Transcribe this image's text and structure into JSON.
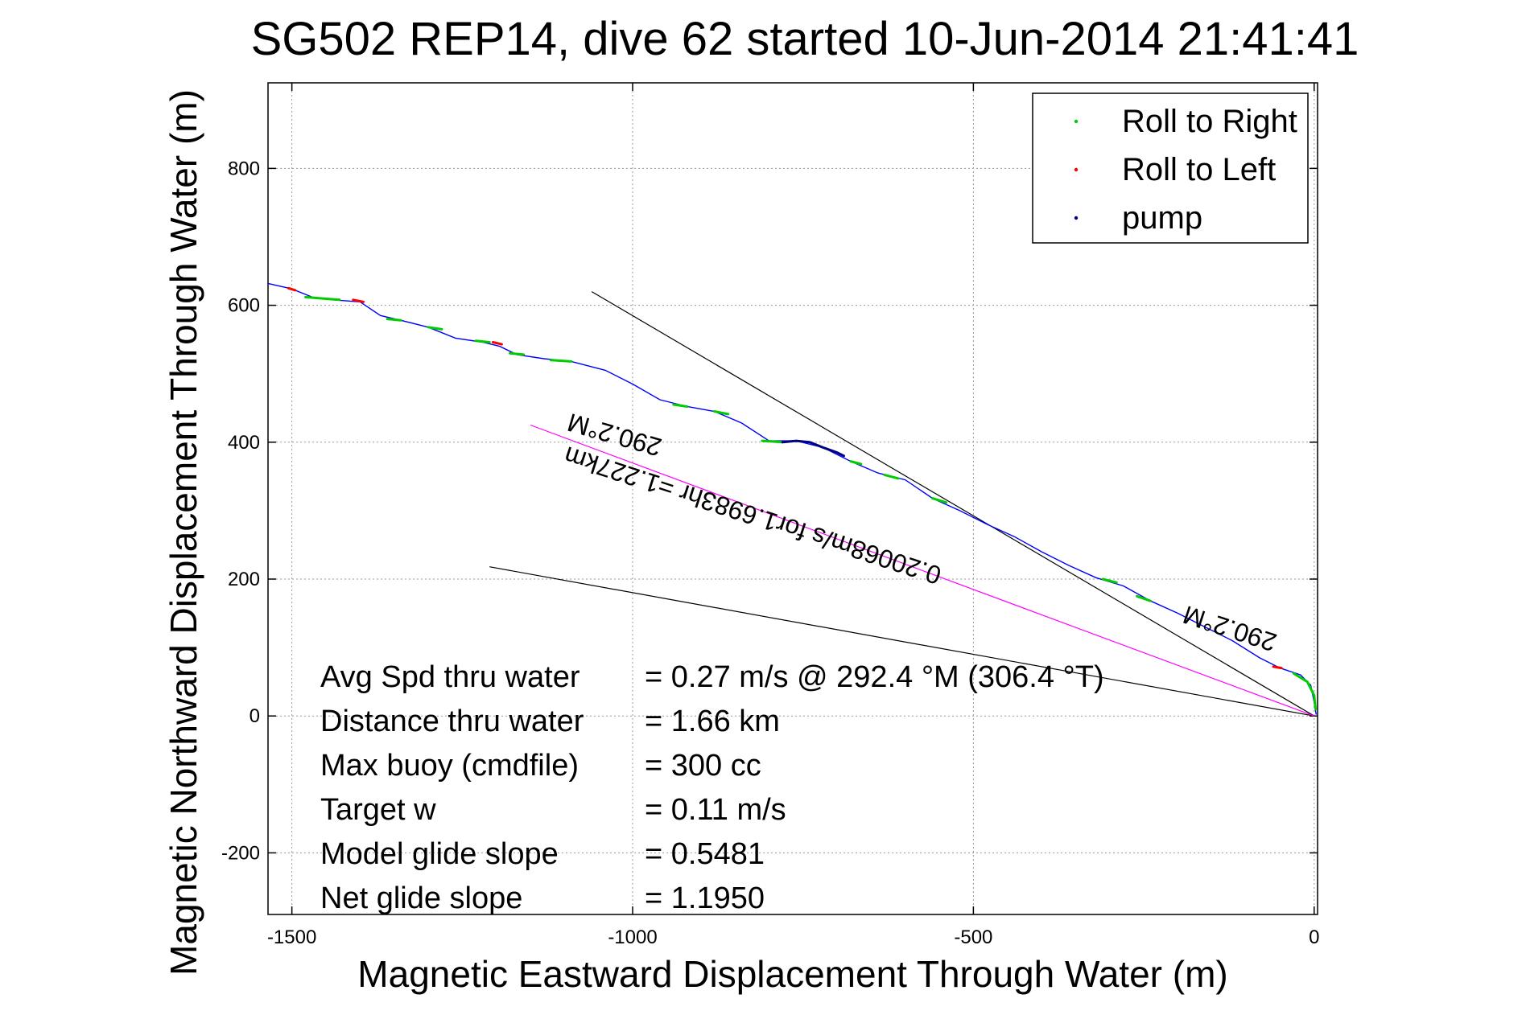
{
  "chart_data": {
    "type": "line",
    "title": "SG502 REP14, dive 62 started 10-Jun-2014 21:41:41",
    "xlabel": "Magnetic Eastward Displacement Through Water (m)",
    "ylabel": "Magnetic Northward Displacement Through Water (m)",
    "xlim": [
      -1535,
      5
    ],
    "ylim": [
      -290,
      925
    ],
    "xticks": [
      -1500,
      -1000,
      -500,
      0
    ],
    "yticks": [
      -200,
      0,
      200,
      400,
      600,
      800
    ],
    "grid": true,
    "legend_position": "top-right",
    "colors": {
      "track": "#0000ff",
      "roll_right": "#00cc00",
      "roll_left": "#ff0000",
      "pump": "#000080",
      "heading_line": "#ff00ff",
      "wedge": "#000000"
    },
    "series": [
      {
        "name": "Roll to Right",
        "segments": [
          [
            [
              -1480,
              612
            ],
            [
              -1455,
              610
            ],
            [
              -1430,
              608
            ]
          ],
          [
            [
              -1360,
              580
            ],
            [
              -1340,
              578
            ]
          ],
          [
            [
              -1300,
              568
            ],
            [
              -1280,
              565
            ]
          ],
          [
            [
              -1230,
              548
            ],
            [
              -1210,
              546
            ]
          ],
          [
            [
              -1180,
              530
            ],
            [
              -1160,
              528
            ]
          ],
          [
            [
              -1120,
              520
            ],
            [
              -1090,
              518
            ]
          ],
          [
            [
              -940,
              455
            ],
            [
              -920,
              452
            ]
          ],
          [
            [
              -880,
              445
            ],
            [
              -860,
              441
            ]
          ],
          [
            [
              -810,
              402
            ],
            [
              -780,
              400
            ]
          ],
          [
            [
              -680,
              372
            ],
            [
              -665,
              368
            ]
          ],
          [
            [
              -630,
              352
            ],
            [
              -610,
              347
            ]
          ],
          [
            [
              -560,
              318
            ],
            [
              -540,
              312
            ]
          ],
          [
            [
              -310,
              200
            ],
            [
              -290,
              195
            ]
          ],
          [
            [
              -260,
              175
            ],
            [
              -240,
              168
            ]
          ],
          [
            [
              -30,
              62
            ],
            [
              -10,
              50
            ],
            [
              0,
              30
            ],
            [
              2,
              10
            ]
          ]
        ]
      },
      {
        "name": "Roll to Left",
        "segments": [
          [
            [
              -1505,
              625
            ],
            [
              -1495,
              622
            ]
          ],
          [
            [
              -1410,
              608
            ],
            [
              -1395,
              605
            ]
          ],
          [
            [
              -1205,
              546
            ],
            [
              -1192,
              543
            ]
          ],
          [
            [
              -60,
              72
            ],
            [
              -48,
              70
            ]
          ]
        ]
      },
      {
        "name": "pump",
        "segments": [
          [
            [
              -780,
              400
            ],
            [
              -760,
              402
            ],
            [
              -740,
              400
            ],
            [
              -720,
              392
            ],
            [
              -700,
              385
            ],
            [
              -690,
              380
            ]
          ]
        ]
      },
      {
        "name": "track",
        "points": [
          [
            -1535,
            632
          ],
          [
            -1500,
            624
          ],
          [
            -1470,
            612
          ],
          [
            -1440,
            608
          ],
          [
            -1400,
            605
          ],
          [
            -1370,
            585
          ],
          [
            -1340,
            578
          ],
          [
            -1300,
            568
          ],
          [
            -1260,
            552
          ],
          [
            -1220,
            546
          ],
          [
            -1195,
            540
          ],
          [
            -1170,
            528
          ],
          [
            -1130,
            522
          ],
          [
            -1090,
            518
          ],
          [
            -1040,
            505
          ],
          [
            -1000,
            485
          ],
          [
            -960,
            462
          ],
          [
            -920,
            452
          ],
          [
            -880,
            445
          ],
          [
            -840,
            428
          ],
          [
            -800,
            402
          ],
          [
            -760,
            402
          ],
          [
            -720,
            392
          ],
          [
            -680,
            372
          ],
          [
            -640,
            355
          ],
          [
            -600,
            345
          ],
          [
            -560,
            318
          ],
          [
            -520,
            300
          ],
          [
            -480,
            280
          ],
          [
            -440,
            262
          ],
          [
            -400,
            240
          ],
          [
            -360,
            220
          ],
          [
            -320,
            202
          ],
          [
            -280,
            190
          ],
          [
            -240,
            168
          ],
          [
            -200,
            150
          ],
          [
            -160,
            130
          ],
          [
            -120,
            110
          ],
          [
            -80,
            85
          ],
          [
            -50,
            70
          ],
          [
            -20,
            60
          ],
          [
            -5,
            45
          ],
          [
            0,
            20
          ],
          [
            3,
            2
          ]
        ]
      },
      {
        "name": "heading",
        "points": [
          [
            -1150,
            425
          ],
          [
            0,
            0
          ]
        ]
      },
      {
        "name": "wedge_upper",
        "points": [
          [
            -1060,
            620
          ],
          [
            0,
            0
          ]
        ]
      },
      {
        "name": "wedge_lower",
        "points": [
          [
            -1210,
            218
          ],
          [
            0,
            0
          ]
        ]
      }
    ],
    "annotations": [
      {
        "text": "290.2°M",
        "x": -1023,
        "y": 423,
        "rotate": 196
      },
      {
        "text": "0.20068m/s for1.6983hr =1.227km",
        "x": -820,
        "y": 305,
        "rotate": 198
      },
      {
        "text": "290.2°M",
        "x": -120,
        "y": 140,
        "rotate": 198
      }
    ],
    "legend": [
      "Roll to Right",
      "Roll to Left",
      "pump"
    ],
    "info": {
      "rows": [
        {
          "label": "Avg Spd thru water",
          "value": "=  0.27 m/s @ 292.4 °M (306.4 °T)"
        },
        {
          "label": "Distance thru water",
          "value": "=  1.66 km"
        },
        {
          "label": "Max buoy (cmdfile)",
          "value": "= 300 cc"
        },
        {
          "label": "Target w",
          "value": "= 0.11 m/s"
        },
        {
          "label": "Model glide slope",
          "value": "= 0.5481"
        },
        {
          "label": "Net glide slope",
          "value": "= 1.1950"
        }
      ]
    }
  }
}
